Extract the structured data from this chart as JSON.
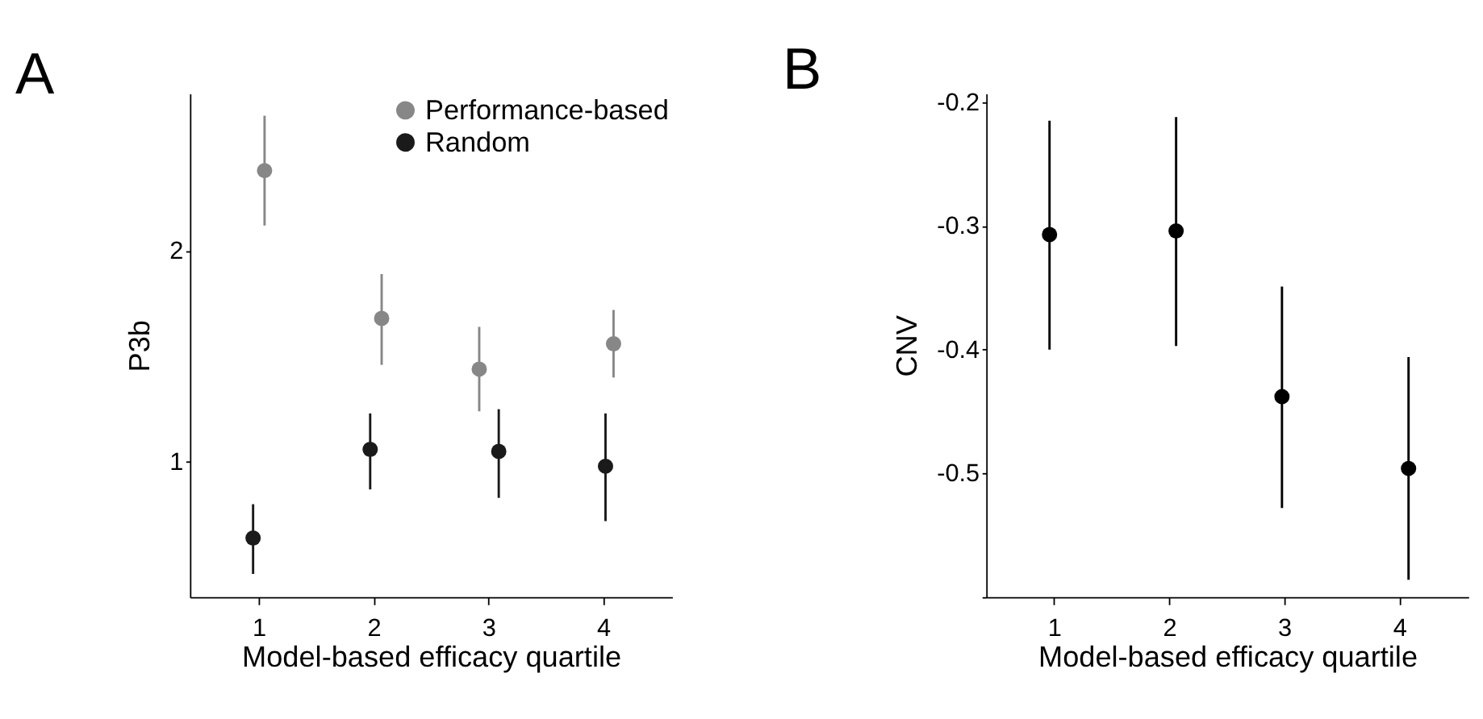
{
  "chart_data": [
    {
      "type": "scatter",
      "title": "A",
      "xlabel": "Model-based efficacy quartile",
      "ylabel": "P3b",
      "xlim": [
        0.4,
        4.6
      ],
      "xticks": [
        1,
        2,
        3,
        4
      ],
      "ylim": [
        0.36,
        2.745
      ],
      "yticks": [
        1,
        2
      ],
      "grid": false,
      "legend": "top right",
      "marker": "circle",
      "series": [
        {
          "name": "Performance-based",
          "color": "#878787",
          "x": [
            1.05,
            2.07,
            2.92,
            4.09
          ],
          "values": [
            2.38,
            1.68,
            1.44,
            1.56
          ],
          "errors": [
            [
              2.12,
              2.64
            ],
            [
              1.46,
              1.89
            ],
            [
              1.24,
              1.64
            ],
            [
              1.4,
              1.72
            ]
          ]
        },
        {
          "name": "Random",
          "color": "#1a1a1a",
          "x": [
            0.95,
            1.97,
            3.09,
            4.02
          ],
          "values": [
            0.64,
            1.06,
            1.05,
            0.98
          ],
          "errors": [
            [
              0.47,
              0.8
            ],
            [
              0.87,
              1.23
            ],
            [
              0.83,
              1.25
            ],
            [
              0.72,
              1.23
            ]
          ]
        }
      ]
    },
    {
      "type": "scatter",
      "title": "B",
      "xlabel": "Model-based efficacy quartile",
      "ylabel": "CNV",
      "xlim": [
        0.41,
        4.6
      ],
      "xticks": [
        1,
        2,
        3,
        4
      ],
      "ylim": [
        -0.6,
        -0.193
      ],
      "yticks": [
        {
          "value": -0.6,
          "label": null
        },
        -0.5,
        -0.4,
        -0.3,
        -0.2
      ],
      "grid": false,
      "marker": "circle",
      "series": [
        {
          "color": "#000000",
          "x": [
            0.96,
            2.06,
            2.98,
            4.08
          ],
          "values": [
            -0.307,
            -0.304,
            -0.438,
            -0.496
          ],
          "errors": [
            [
              -0.4,
              -0.215
            ],
            [
              -0.397,
              -0.212
            ],
            [
              -0.528,
              -0.349
            ],
            [
              -0.586,
              -0.406
            ]
          ]
        }
      ]
    }
  ]
}
